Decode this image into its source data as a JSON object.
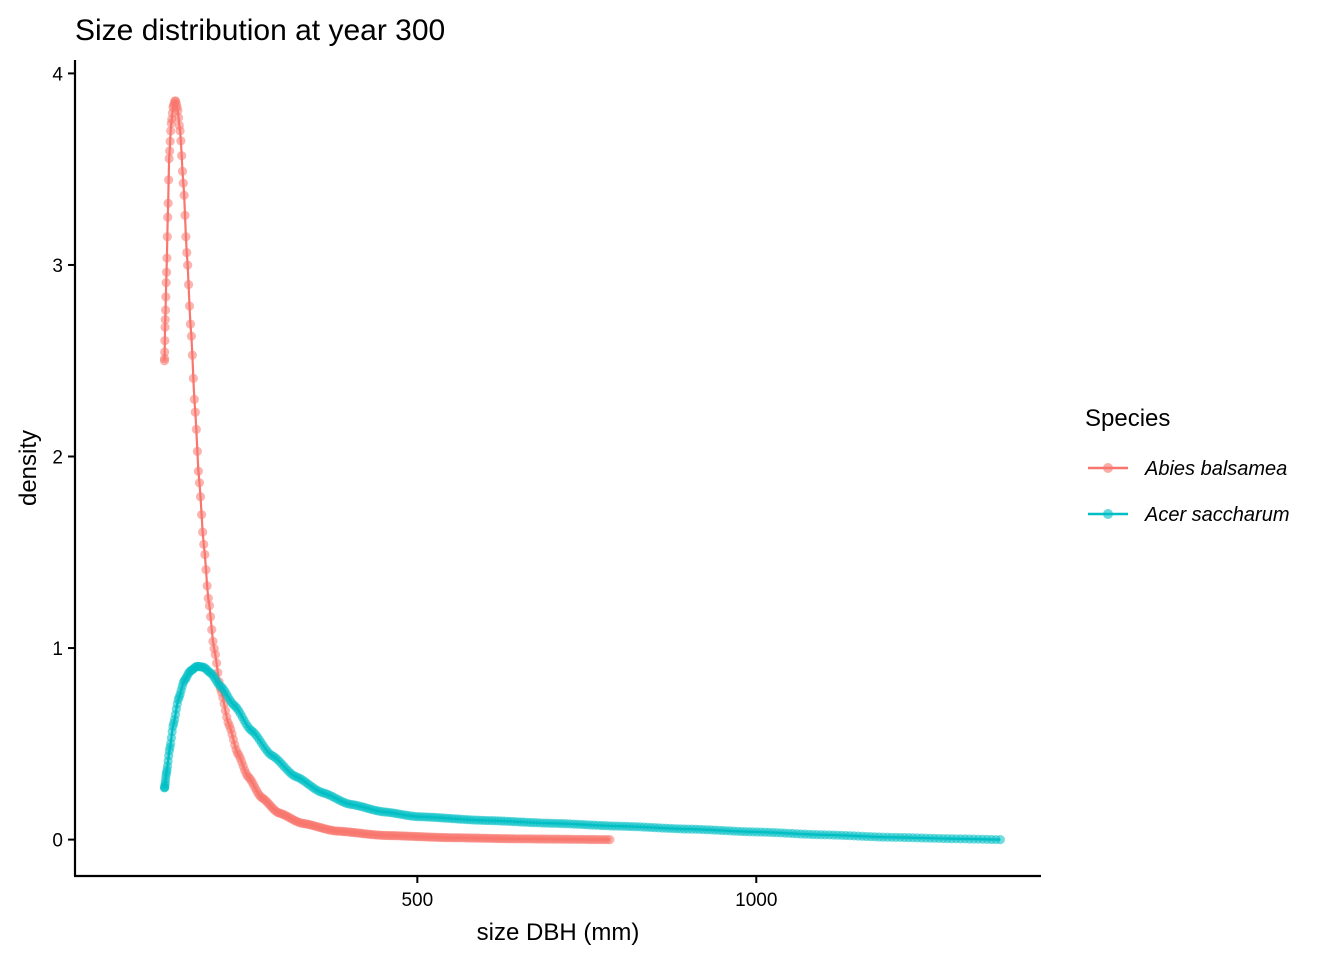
{
  "chart_data": {
    "type": "line",
    "title": "Size distribution at year 300",
    "xlabel": "size DBH (mm)",
    "ylabel": "density",
    "xlim": [
      -5,
      1420
    ],
    "ylim": [
      -0.19,
      4.07
    ],
    "xticks": [
      500,
      1000
    ],
    "xtick_labels": [
      "500",
      "1000"
    ],
    "yticks": [
      0,
      1,
      2,
      3,
      4
    ],
    "ytick_labels": [
      "0",
      "1",
      "2",
      "3",
      "4"
    ],
    "grid": false,
    "legend": {
      "title": "Species",
      "placement": "right",
      "entries": [
        "Abies balsamea",
        "Acer saccharum"
      ]
    },
    "series": [
      {
        "name": "Abies balsamea",
        "color": "#F8766D",
        "markers": true,
        "x_range": [
          127,
          784
        ],
        "anchors": [
          [
            127,
            2.5
          ],
          [
            128,
            2.7
          ],
          [
            130,
            2.96
          ],
          [
            132,
            3.27
          ],
          [
            134,
            3.57
          ],
          [
            137,
            3.74
          ],
          [
            140,
            3.83
          ],
          [
            143,
            3.86
          ],
          [
            146,
            3.82
          ],
          [
            150,
            3.7
          ],
          [
            155,
            3.42
          ],
          [
            160,
            3.06
          ],
          [
            166,
            2.66
          ],
          [
            172,
            2.25
          ],
          [
            178,
            1.88
          ],
          [
            185,
            1.54
          ],
          [
            192,
            1.25
          ],
          [
            200,
            1.0
          ],
          [
            210,
            0.78
          ],
          [
            222,
            0.6
          ],
          [
            235,
            0.45
          ],
          [
            250,
            0.33
          ],
          [
            270,
            0.22
          ],
          [
            295,
            0.14
          ],
          [
            330,
            0.085
          ],
          [
            380,
            0.045
          ],
          [
            450,
            0.022
          ],
          [
            550,
            0.01
          ],
          [
            650,
            0.004
          ],
          [
            784,
            0.0
          ]
        ]
      },
      {
        "name": "Acer saccharum",
        "color": "#00BFC4",
        "markers": true,
        "x_range": [
          127,
          1360
        ],
        "anchors": [
          [
            127,
            0.27
          ],
          [
            130,
            0.35
          ],
          [
            135,
            0.48
          ],
          [
            140,
            0.6
          ],
          [
            148,
            0.74
          ],
          [
            156,
            0.83
          ],
          [
            165,
            0.88
          ],
          [
            175,
            0.905
          ],
          [
            185,
            0.9
          ],
          [
            195,
            0.87
          ],
          [
            210,
            0.8
          ],
          [
            230,
            0.7
          ],
          [
            255,
            0.57
          ],
          [
            285,
            0.44
          ],
          [
            320,
            0.33
          ],
          [
            360,
            0.245
          ],
          [
            400,
            0.185
          ],
          [
            450,
            0.145
          ],
          [
            500,
            0.12
          ],
          [
            600,
            0.1
          ],
          [
            700,
            0.085
          ],
          [
            800,
            0.07
          ],
          [
            900,
            0.055
          ],
          [
            1000,
            0.04
          ],
          [
            1100,
            0.025
          ],
          [
            1200,
            0.012
          ],
          [
            1300,
            0.004
          ],
          [
            1360,
            0.0
          ]
        ]
      }
    ]
  }
}
